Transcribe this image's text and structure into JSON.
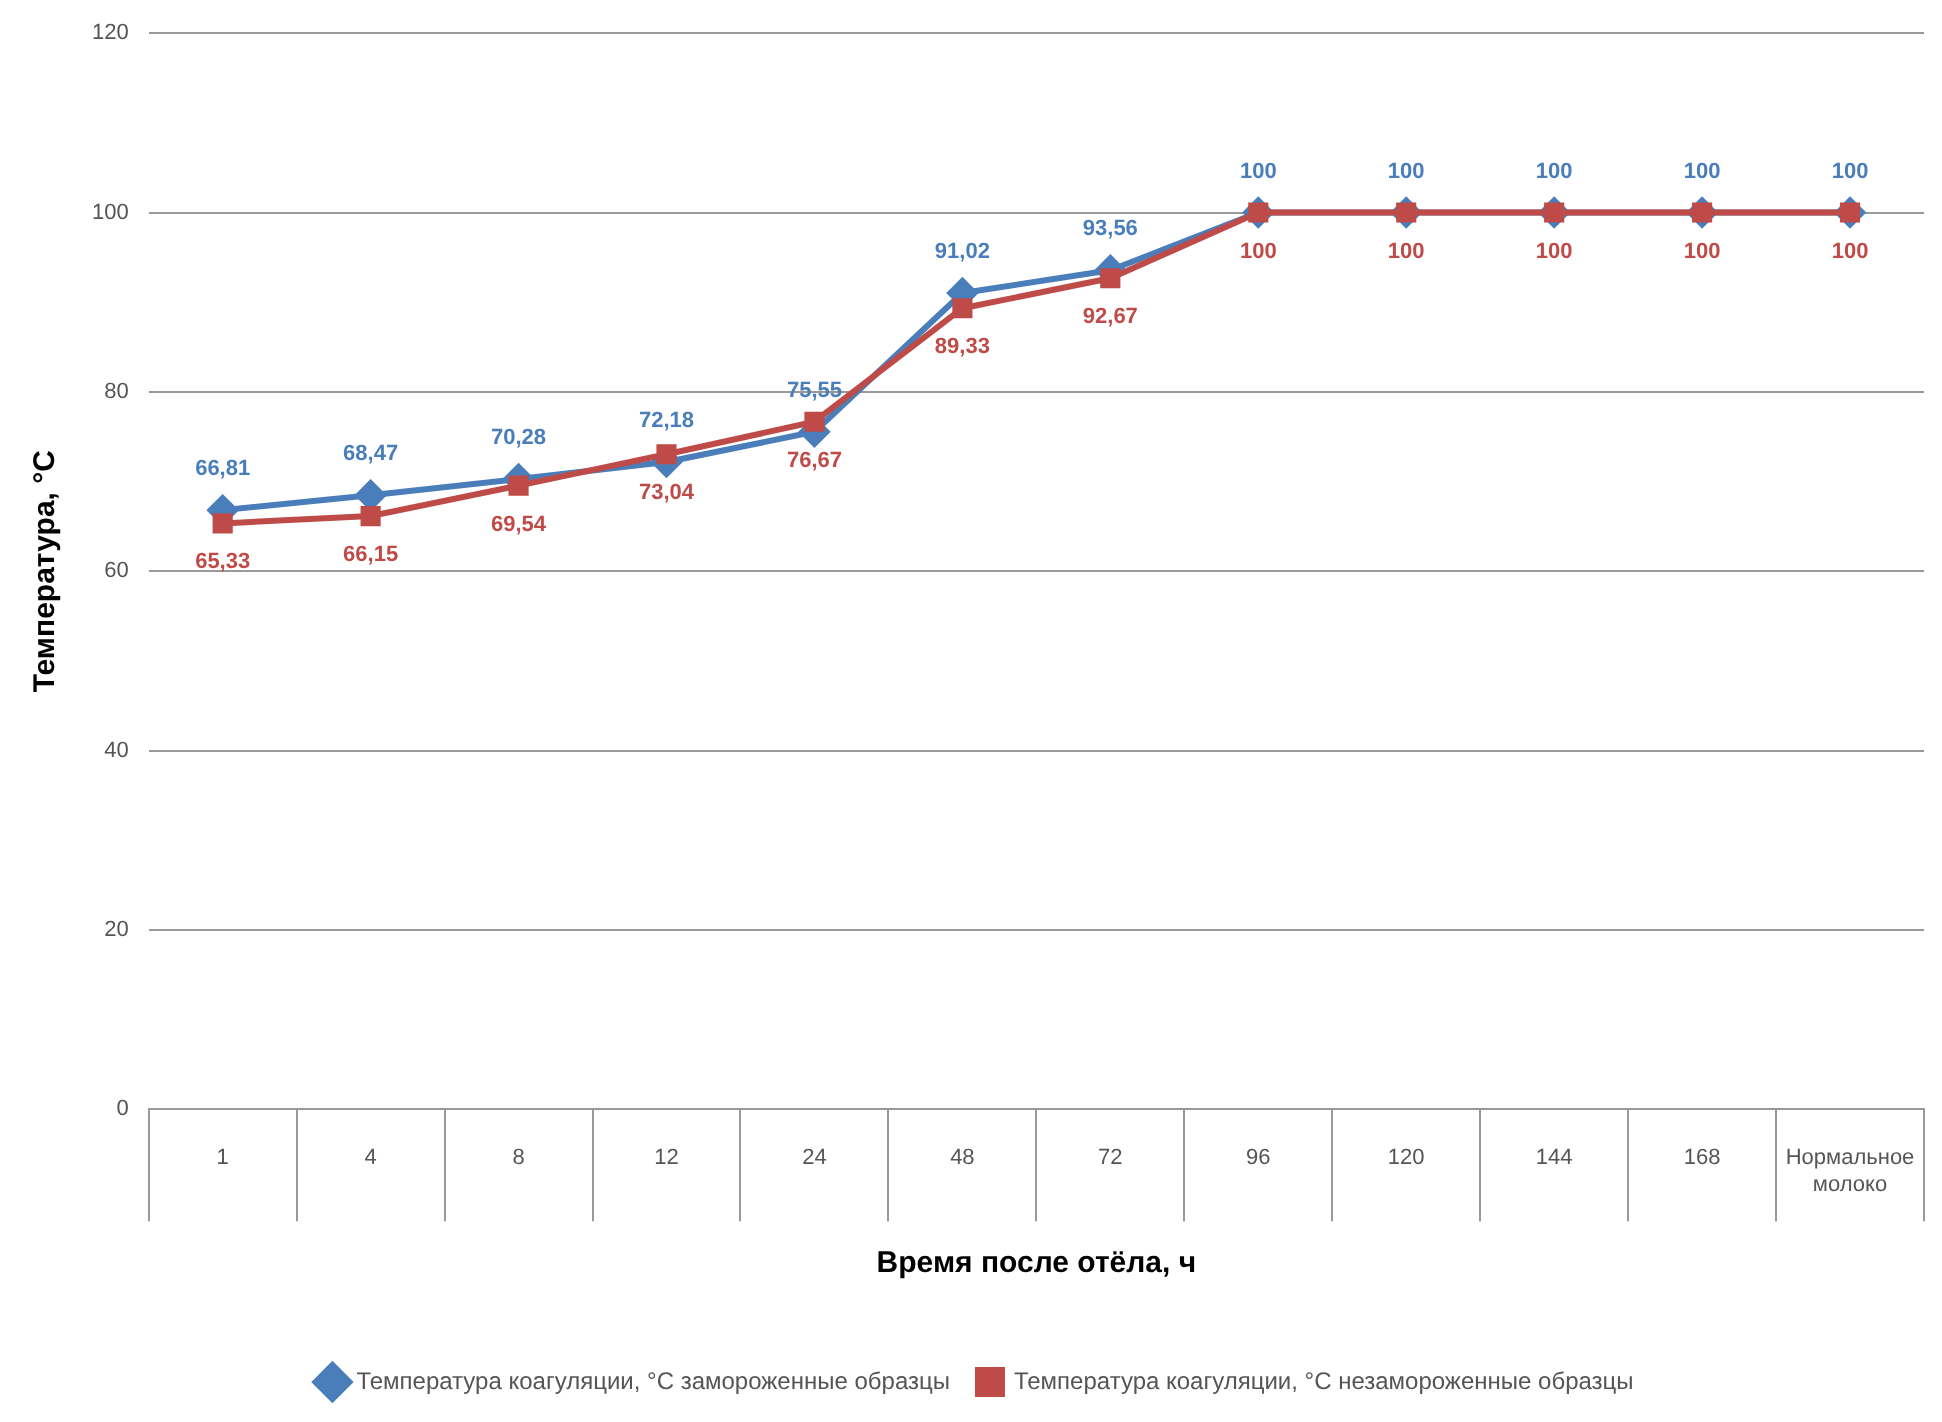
{
  "chart_data": {
    "type": "line",
    "xlabel": "Время после отёла, ч",
    "ylabel": "Температура, °С",
    "categories": [
      "1",
      "4",
      "8",
      "12",
      "24",
      "48",
      "72",
      "96",
      "120",
      "144",
      "168",
      "Нормальное молоко"
    ],
    "ylim": [
      0,
      120
    ],
    "yticks": [
      0,
      20,
      40,
      60,
      80,
      100,
      120
    ],
    "grid": "y",
    "legend": "bottom",
    "line_style": "solid",
    "series": [
      {
        "name": "Температура коагуляции, °С замороженные образцы",
        "color": "#4a7ebb",
        "marker": "diamond",
        "values": [
          66.81,
          68.47,
          70.28,
          72.18,
          75.55,
          91.02,
          93.56,
          100,
          100,
          100,
          100,
          100
        ],
        "value_labels": [
          "66,81",
          "68,47",
          "70,28",
          "72,18",
          "75,55",
          "91,02",
          "93,56",
          "100",
          "100",
          "100",
          "100",
          "100"
        ]
      },
      {
        "name": "Температура коагуляции, °С незамороженные образцы",
        "color": "#be4b48",
        "marker": "square",
        "values": [
          65.33,
          66.15,
          69.54,
          73.04,
          76.67,
          89.33,
          92.67,
          100,
          100,
          100,
          100,
          100
        ],
        "value_labels": [
          "65,33",
          "66,15",
          "69,54",
          "73,04",
          "76,67",
          "89,33",
          "92,67",
          "100",
          "100",
          "100",
          "100",
          "100"
        ]
      }
    ]
  }
}
